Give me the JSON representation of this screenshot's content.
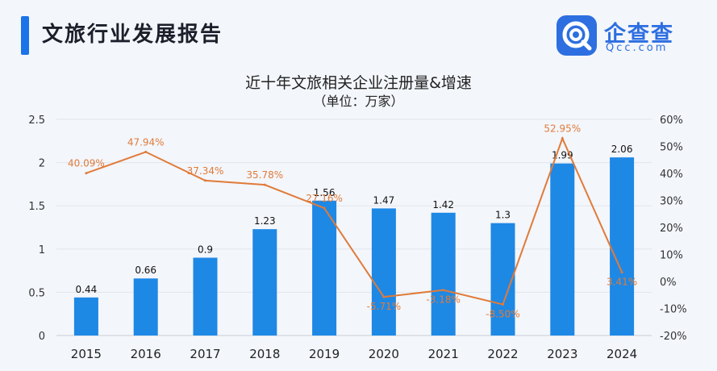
{
  "header": {
    "title": "文旅行业发展报告",
    "logo_name": "企查查",
    "logo_url": "Qcc.com",
    "logo_icon": "qcc-logo-icon"
  },
  "colors": {
    "accent": "#1a73e8",
    "bar": "#1e88e5",
    "line": "#e07b39",
    "logo": "#2d6fe0"
  },
  "chart_data": {
    "type": "bar",
    "title": "近十年文旅相关企业注册量&增速",
    "subtitle": "（单位：万家）",
    "categories": [
      "2015",
      "2016",
      "2017",
      "2018",
      "2019",
      "2020",
      "2021",
      "2022",
      "2023",
      "2024"
    ],
    "series": [
      {
        "type": "bar",
        "axis": "left",
        "values": [
          0.44,
          0.66,
          0.9,
          1.23,
          1.56,
          1.47,
          1.42,
          1.3,
          1.99,
          2.06
        ],
        "labels": [
          "0.44",
          "0.66",
          "0.9",
          "1.23",
          "1.56",
          "1.47",
          "1.42",
          "1.3",
          "1.99",
          "2.06"
        ]
      },
      {
        "type": "line",
        "axis": "right",
        "values": [
          40.09,
          47.94,
          37.34,
          35.78,
          27.16,
          -5.71,
          -3.18,
          -8.5,
          52.95,
          3.41
        ],
        "labels": [
          "40.09%",
          "47.94%",
          "37.34%",
          "35.78%",
          "27.16%",
          "-5.71%",
          "-3.18%",
          "-8.50%",
          "52.95%",
          "3.41%"
        ]
      }
    ],
    "ylim_left": [
      0,
      2.5
    ],
    "ylim_right": [
      -20,
      60
    ],
    "left_ticks": [
      "0",
      "0.5",
      "1",
      "1.5",
      "2",
      "2.5"
    ],
    "right_ticks": [
      "-20%",
      "-10%",
      "0%",
      "10%",
      "20%",
      "30%",
      "40%",
      "50%",
      "60%"
    ],
    "grid": true,
    "legend": "none"
  }
}
